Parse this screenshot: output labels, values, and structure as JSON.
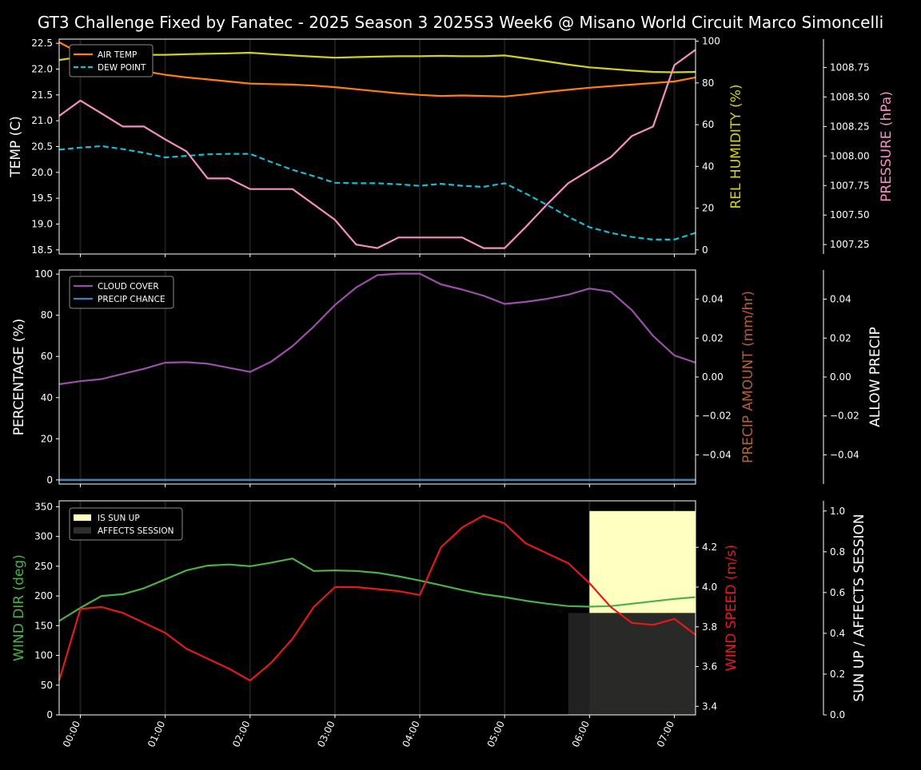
{
  "title": "GT3 Challenge Fixed by Fanatec - 2025 Season 3 2025S3 Week6 @ Misano World Circuit Marco Simoncelli",
  "colors": {
    "background": "#000000",
    "air_temp": "#ff7f0e",
    "dew_point": "#17becf",
    "humidity": "#d2d219",
    "pressure": "#f48fc4",
    "cloud": "#9b4fa8",
    "precip_chance": "#3d7fc4",
    "precip_amount": "#b0603a",
    "wind_dir": "#4caf4a",
    "wind_speed": "#e31a1c",
    "sun_up": "#ffffc2",
    "affects_session": "#222222"
  },
  "chart_data": [
    {
      "type": "line",
      "panel": "weather",
      "x_tick_labels": [
        "00:00",
        "01:00",
        "02:00",
        "03:00",
        "04:00",
        "05:00",
        "06:00",
        "07:00"
      ],
      "x_hours": [
        -0.25,
        0.0,
        0.25,
        0.5,
        0.75,
        1.0,
        1.25,
        1.5,
        1.75,
        2.0,
        2.25,
        2.5,
        2.75,
        3.0,
        3.25,
        3.5,
        3.75,
        4.0,
        4.25,
        4.5,
        4.75,
        5.0,
        5.25,
        5.5,
        5.75,
        6.0,
        6.25,
        6.5,
        6.75,
        7.0,
        7.25
      ],
      "xlim": [
        -0.25,
        7.25
      ],
      "ylabel": "TEMP (C)",
      "ylabel_right": "REL HUMIDITY (%)",
      "ylabel_right2": "PRESSURE (hPa)",
      "ylim": [
        18.42,
        22.58
      ],
      "y_ticks": [
        "18.5",
        "19.0",
        "19.5",
        "20.0",
        "20.5",
        "21.0",
        "21.5",
        "22.0",
        "22.5"
      ],
      "ylim_right": [
        -2,
        101
      ],
      "y_ticks_right": [
        "0",
        "20",
        "40",
        "60",
        "80",
        "100"
      ],
      "ylim_right2": [
        1007.17,
        1008.99
      ],
      "y_ticks_right2": [
        "1007.25",
        "1007.50",
        "1007.75",
        "1008.00",
        "1008.25",
        "1008.50",
        "1008.75"
      ],
      "legend": [
        "AIR TEMP",
        "DEW POINT"
      ],
      "legend_location": "upper-left",
      "series": [
        {
          "name": "AIR TEMP",
          "axis": "left",
          "style": "solid",
          "values": [
            22.52,
            22.3,
            22.12,
            22.02,
            21.96,
            21.89,
            21.84,
            21.8,
            21.76,
            21.72,
            21.71,
            21.7,
            21.68,
            21.65,
            21.61,
            21.57,
            21.53,
            21.5,
            21.48,
            21.49,
            21.48,
            21.47,
            21.51,
            21.56,
            21.6,
            21.64,
            21.67,
            21.7,
            21.73,
            21.76,
            21.84
          ]
        },
        {
          "name": "DEW POINT",
          "axis": "left",
          "style": "dashed",
          "values": [
            20.44,
            20.48,
            20.51,
            20.45,
            20.38,
            20.29,
            20.32,
            20.35,
            20.36,
            20.36,
            20.2,
            20.05,
            19.93,
            19.8,
            19.79,
            19.79,
            19.77,
            19.74,
            19.78,
            19.74,
            19.72,
            19.79,
            19.59,
            19.37,
            19.14,
            18.94,
            18.83,
            18.75,
            18.7,
            18.7,
            18.83
          ]
        },
        {
          "name": "REL HUMIDITY",
          "axis": "right",
          "style": "solid",
          "values": [
            91,
            92.5,
            93.5,
            93.5,
            93.5,
            93.5,
            93.8,
            94,
            94.2,
            94.5,
            93.8,
            93.2,
            92.6,
            92.1,
            92.4,
            92.6,
            92.8,
            92.8,
            93,
            92.8,
            92.8,
            93.2,
            91.8,
            90.3,
            88.8,
            87.5,
            86.7,
            85.9,
            85.3,
            85.1,
            85.3
          ]
        },
        {
          "name": "PRESSURE",
          "axis": "right2",
          "style": "solid",
          "values": [
            1008.34,
            1008.47,
            1008.36,
            1008.25,
            1008.25,
            1008.14,
            1008.04,
            1007.81,
            1007.81,
            1007.72,
            1007.72,
            1007.72,
            1007.59,
            1007.46,
            1007.25,
            1007.22,
            1007.31,
            1007.31,
            1007.31,
            1007.31,
            1007.22,
            1007.22,
            1007.4,
            1007.59,
            1007.77,
            1007.88,
            1007.99,
            1008.17,
            1008.25,
            1008.77,
            1008.9
          ]
        }
      ]
    },
    {
      "type": "line",
      "panel": "clouds",
      "ylabel": "PERCENTAGE (%)",
      "ylabel_right": "PRECIP AMOUNT (mm/hr)",
      "ylabel_right2": "ALLOW PRECIP",
      "ylim": [
        -2,
        102
      ],
      "y_ticks": [
        "0",
        "20",
        "40",
        "60",
        "80",
        "100"
      ],
      "ylim_right": [
        -0.055,
        0.055
      ],
      "y_ticks_right": [
        "−0.04",
        "−0.02",
        "0.00",
        "0.02",
        "0.04"
      ],
      "y_ticks_right2": [
        "−0.04",
        "−0.02",
        "0.00",
        "0.02",
        "0.04"
      ],
      "legend": [
        "CLOUD COVER",
        "PRECIP CHANCE"
      ],
      "legend_location": "upper-left",
      "series": [
        {
          "name": "CLOUD COVER",
          "axis": "left",
          "style": "solid",
          "values": [
            46.5,
            48,
            49,
            51.5,
            54,
            57,
            57.2,
            56.5,
            54.5,
            52.5,
            57.5,
            65,
            74.5,
            85,
            93.5,
            99.5,
            100.2,
            100.2,
            95,
            92.5,
            89.5,
            85.5,
            86.5,
            88,
            90,
            93,
            91.5,
            82.5,
            70,
            60.5,
            57
          ]
        },
        {
          "name": "PRECIP CHANCE",
          "axis": "left",
          "style": "solid",
          "values": [
            0,
            0,
            0,
            0,
            0,
            0,
            0,
            0,
            0,
            0,
            0,
            0,
            0,
            0,
            0,
            0,
            0,
            0,
            0,
            0,
            0,
            0,
            0,
            0,
            0,
            0,
            0,
            0,
            0,
            0,
            0
          ]
        }
      ]
    },
    {
      "type": "line",
      "panel": "wind",
      "ylabel": "WIND DIR (deg)",
      "ylabel_right": "WIND SPEED (m/s)",
      "ylabel_right2": "SUN UP / AFFECTS SESSION",
      "ylim": [
        0,
        360
      ],
      "y_ticks": [
        "0",
        "50",
        "100",
        "150",
        "200",
        "250",
        "300",
        "350"
      ],
      "ylim_right": [
        3.357,
        4.434
      ],
      "y_ticks_right": [
        "3.4",
        "3.6",
        "3.8",
        "4.0",
        "4.2"
      ],
      "ylim_right2": [
        0,
        1.05
      ],
      "y_ticks_right2": [
        "0.0",
        "0.2",
        "0.4",
        "0.6",
        "0.8",
        "1.0"
      ],
      "legend": [
        "IS SUN UP",
        "AFFECTS SESSION"
      ],
      "legend_location": "upper-left",
      "sun_up": {
        "from_hour": 6.0,
        "to_hour": 7.25,
        "level": 1.0
      },
      "affects_session": {
        "from_hour": 5.75,
        "to_hour": 7.25,
        "level": 0.5
      },
      "series": [
        {
          "name": "WIND DIR",
          "axis": "left",
          "style": "solid",
          "values": [
            158,
            180,
            200,
            203,
            213,
            228,
            243,
            251,
            253,
            250,
            256,
            263,
            242,
            243,
            242,
            239,
            233,
            226,
            218,
            210,
            203,
            198,
            192,
            187,
            183,
            182,
            183,
            187,
            191,
            195,
            198
          ]
        },
        {
          "name": "WIND SPEED",
          "axis": "right",
          "style": "solid",
          "values": [
            3.53,
            3.89,
            3.9,
            3.87,
            3.82,
            3.77,
            3.69,
            3.64,
            3.59,
            3.53,
            3.62,
            3.74,
            3.9,
            4.0,
            4.0,
            3.99,
            3.98,
            3.96,
            4.2,
            4.3,
            4.36,
            4.32,
            4.22,
            4.17,
            4.12,
            4.02,
            3.9,
            3.82,
            3.81,
            3.84,
            3.76
          ]
        }
      ]
    }
  ]
}
